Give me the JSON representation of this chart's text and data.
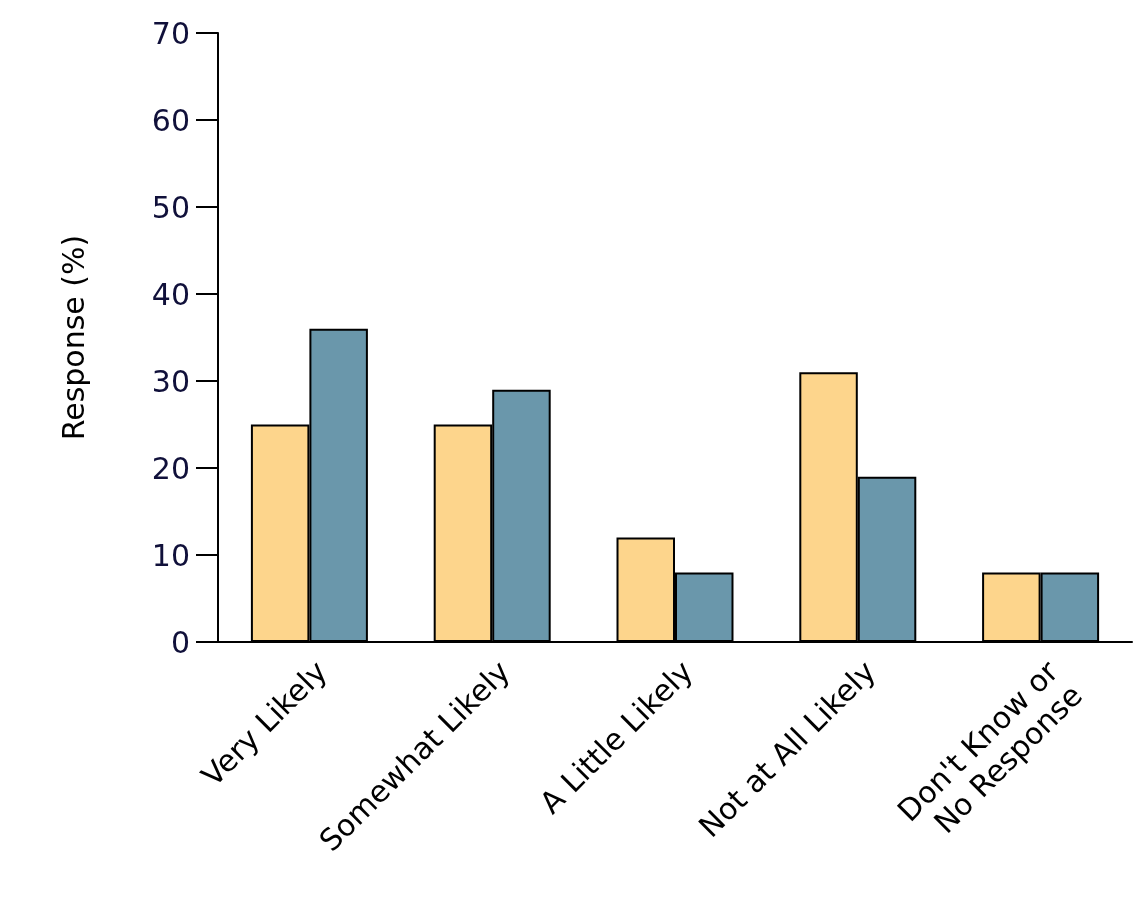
{
  "chart_data": {
    "type": "bar",
    "ylabel": "Response (%)",
    "categories": [
      "Very Likely",
      "Somewhat Likely",
      "A Little Likely",
      "Not at All Likely",
      "Don't Know or\nNo Response"
    ],
    "series": [
      {
        "color": "#fdd58c",
        "values": [
          25,
          25,
          12,
          31,
          8
        ]
      },
      {
        "color": "#6a97ab",
        "values": [
          36,
          29,
          8,
          19,
          8
        ]
      }
    ],
    "ylim": [
      0,
      70
    ],
    "yticks": [
      0,
      10,
      20,
      30,
      40,
      50,
      60,
      70
    ],
    "grid": false
  }
}
